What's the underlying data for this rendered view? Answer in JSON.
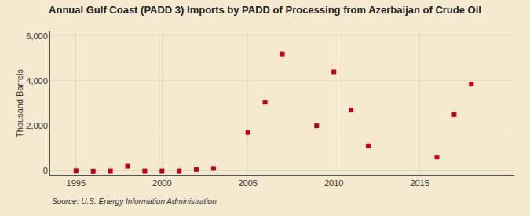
{
  "chart_data": {
    "type": "scatter",
    "title": "Annual Gulf Coast (PADD 3) Imports by PADD of Processing from Azerbaijan of Crude Oil",
    "ylabel": "Thousand Barrels",
    "annotations": [
      "Source: U.S. Energy Information Administration"
    ],
    "background_color": "#f5e9d0",
    "color": "#c0001a",
    "marker": "square",
    "grid": true,
    "xlim": [
      1993.5,
      2020.5
    ],
    "ylim": [
      -200,
      6200
    ],
    "xticks": [
      1995,
      2000,
      2005,
      2010,
      2015
    ],
    "yticks": [
      0,
      {
        "value": 2000,
        "label": "2,000"
      },
      {
        "value": 4000,
        "label": "4,000"
      },
      {
        "value": 6000,
        "label": "6,000"
      }
    ],
    "x": [
      1995,
      1996,
      1997,
      1998,
      1999,
      2000,
      2001,
      2002,
      2003,
      2005,
      2006,
      2007,
      2009,
      2010,
      2011,
      2012,
      2016,
      2017,
      2018
    ],
    "values": [
      0,
      -20,
      -10,
      200,
      -10,
      -10,
      -10,
      50,
      100,
      1700,
      3050,
      5200,
      2000,
      4400,
      2700,
      1100,
      600,
      2500,
      3850
    ]
  }
}
